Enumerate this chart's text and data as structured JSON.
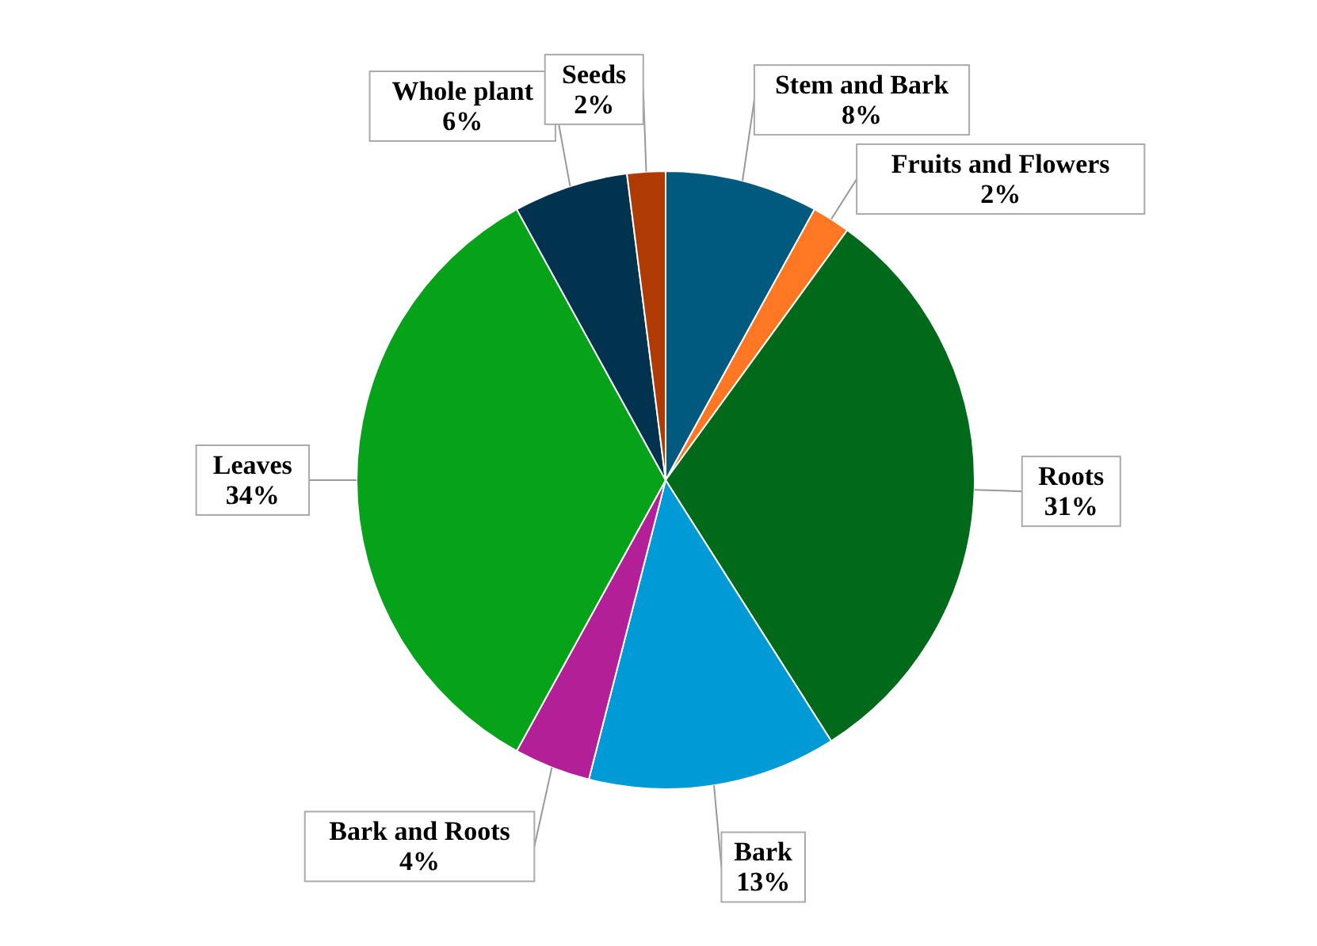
{
  "chart_data": {
    "type": "pie",
    "categories": [
      "Stem and Bark",
      "Fruits and Flowers",
      "Roots",
      "Bark",
      "Bark and Roots",
      "Leaves",
      "Whole plant",
      "Seeds"
    ],
    "values": [
      8,
      2,
      31,
      13,
      4,
      34,
      6,
      2
    ],
    "value_labels": [
      "8%",
      "2%",
      "31%",
      "13%",
      "4%",
      "34%",
      "6%",
      "2%"
    ],
    "colors": [
      "#005a7f",
      "#ff7722",
      "#006a1a",
      "#009ad6",
      "#b21f96",
      "#05a21a",
      "#01334f",
      "#b03a04"
    ],
    "legend": false
  }
}
